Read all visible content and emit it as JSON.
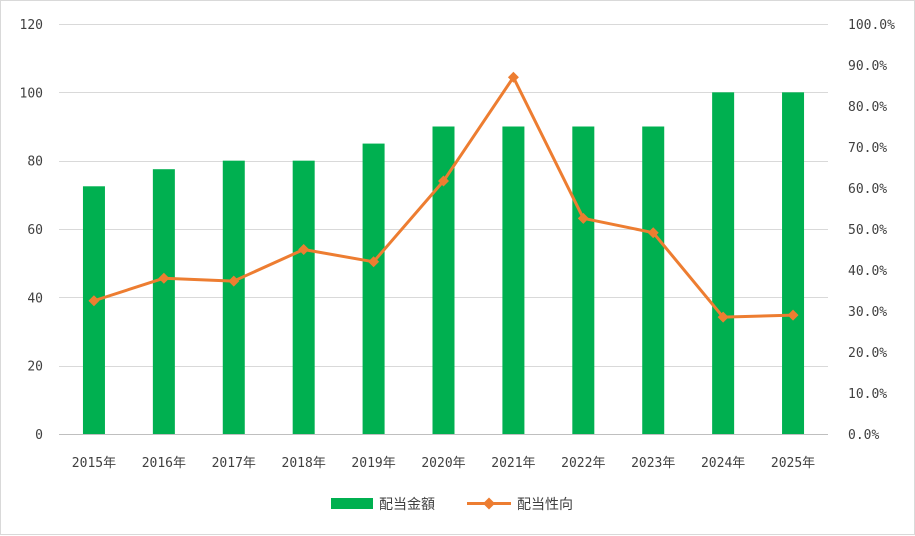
{
  "chart_data": {
    "type": "bar",
    "categories": [
      "2015年",
      "2016年",
      "2017年",
      "2018年",
      "2019年",
      "2020年",
      "2021年",
      "2022年",
      "2023年",
      "2024年",
      "2025年"
    ],
    "series": [
      {
        "name": "配当金額",
        "type": "bar",
        "axis": "left",
        "color": "#00b050",
        "values": [
          72.5,
          77.5,
          80,
          80,
          85,
          90,
          90,
          90,
          90,
          100,
          100
        ]
      },
      {
        "name": "配当性向",
        "type": "line",
        "axis": "right",
        "color": "#ed7d31",
        "marker": "diamond",
        "values": [
          32.5,
          38.0,
          37.3,
          45.0,
          42.0,
          61.7,
          87.0,
          52.6,
          49.1,
          28.5,
          29.0
        ]
      }
    ],
    "left_axis": {
      "min": 0,
      "max": 120,
      "ticks": [
        0,
        20,
        40,
        60,
        80,
        100,
        120
      ]
    },
    "right_axis": {
      "min": 0,
      "max": 100,
      "ticks": [
        0,
        10,
        20,
        30,
        40,
        50,
        60,
        70,
        80,
        90,
        100
      ],
      "tick_labels": [
        "0.0%",
        "10.0%",
        "20.0%",
        "30.0%",
        "40.0%",
        "50.0%",
        "60.0%",
        "70.0%",
        "80.0%",
        "90.0%",
        "100.0%"
      ]
    },
    "grid": true,
    "legend": {
      "position": "bottom",
      "labels": [
        "配当金額",
        "配当性向"
      ]
    }
  }
}
